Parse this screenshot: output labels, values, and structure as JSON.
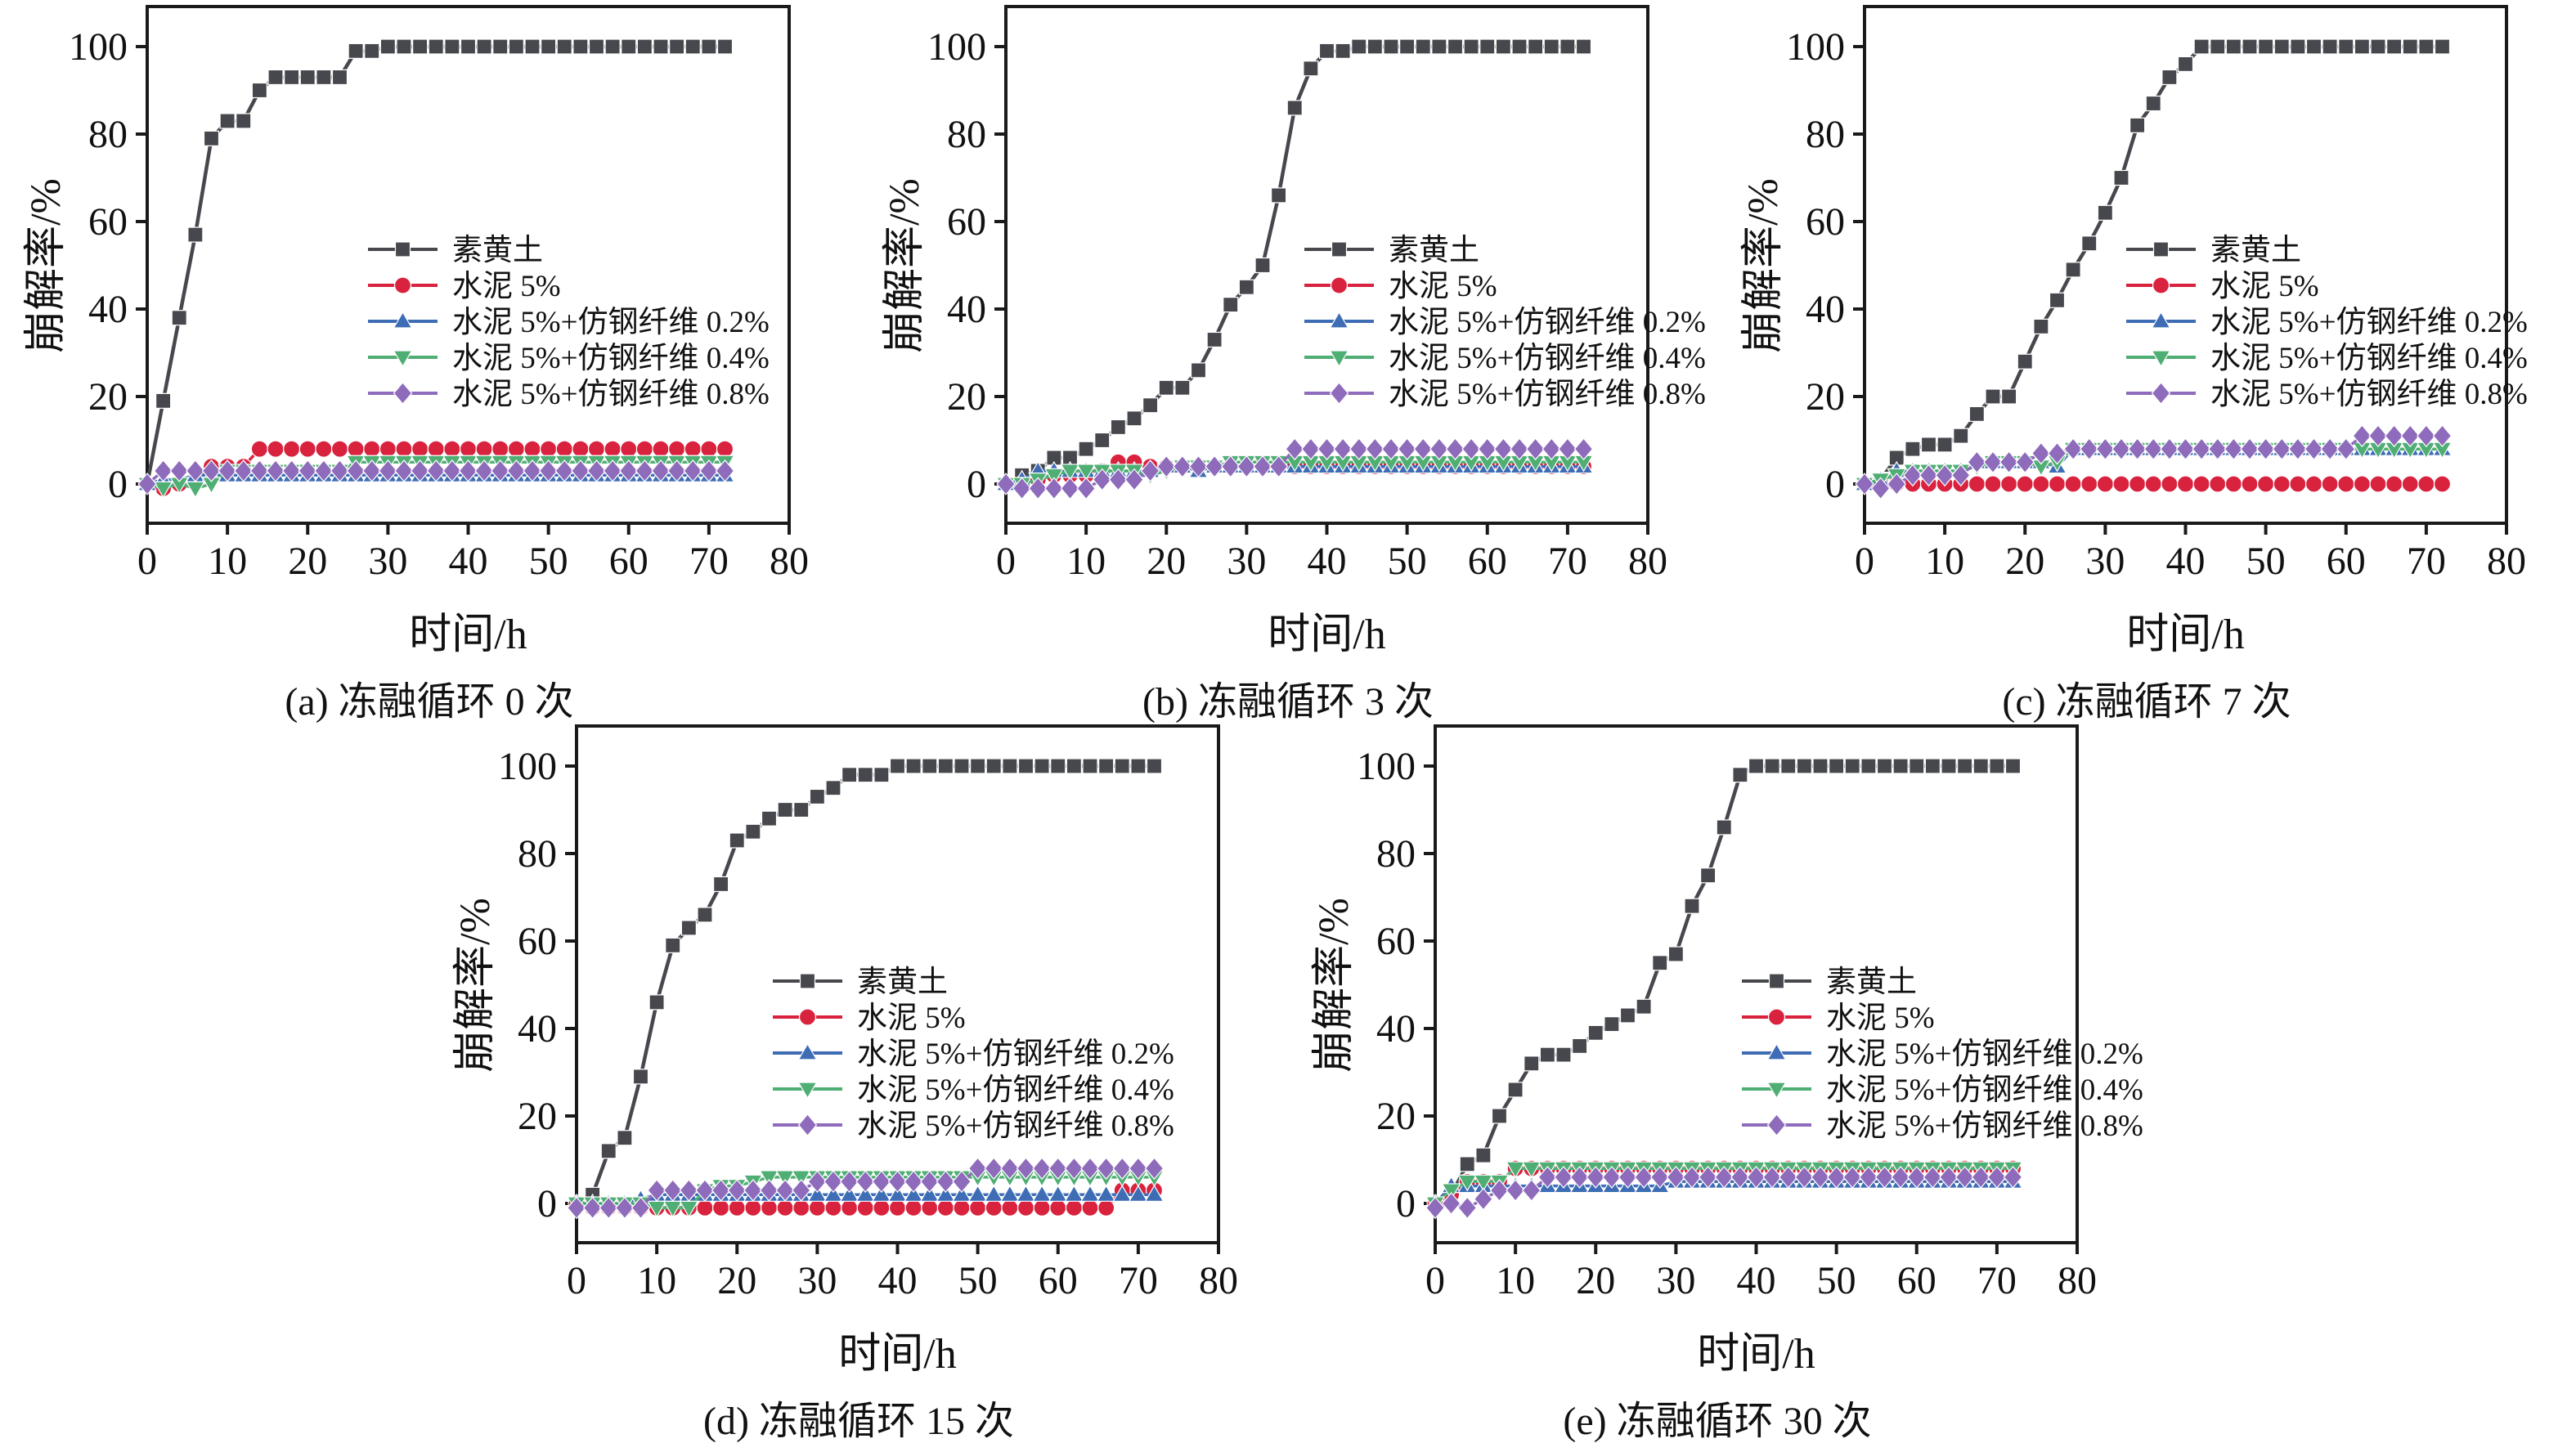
{
  "figure": {
    "description": "五组崩解率-时间曲线（冻融循环次数不同）",
    "axis_color": "#1a1a1a",
    "background": "#ffffff",
    "series_meta": [
      {
        "key": "loess",
        "label": "素黄土",
        "color": "#47484D",
        "marker": "square"
      },
      {
        "key": "cement",
        "label": "水泥 5%",
        "color": "#D9233E",
        "marker": "circle"
      },
      {
        "key": "f02",
        "label": "水泥 5%+仿钢纤维 0.2%",
        "color": "#3E6DB5",
        "marker": "triangle-up"
      },
      {
        "key": "f04",
        "label": "水泥 5%+仿钢纤维 0.4%",
        "color": "#4FAE73",
        "marker": "triangle-down"
      },
      {
        "key": "f08",
        "label": "水泥 5%+仿钢纤维 0.8%",
        "color": "#8E6BBB",
        "marker": "diamond"
      }
    ]
  },
  "chart_data": [
    {
      "id": "a",
      "type": "line",
      "caption": "(a) 冻融循环 0 次",
      "xlabel": "时间/h",
      "ylabel": "崩解率/%",
      "xlim": [
        0,
        80
      ],
      "x_ticks": [
        0,
        10,
        20,
        30,
        40,
        50,
        60,
        70,
        80
      ],
      "y_ticks": [
        0,
        20,
        40,
        60,
        80,
        100
      ],
      "x_start": 0,
      "x_step": 2,
      "x_end": 72,
      "n_points": 37,
      "grid": false,
      "legend_position": "inside-middle",
      "series": [
        {
          "name": "素黄土",
          "values": [
            0,
            19,
            38,
            57,
            79,
            83,
            83,
            90,
            93,
            93,
            93,
            93,
            93,
            99,
            99,
            100
          ]
        },
        {
          "name": "水泥 5%",
          "values": [
            0,
            -1,
            0,
            1,
            4,
            4,
            4,
            8
          ]
        },
        {
          "name": "水泥 5%+仿钢纤维 0.2%",
          "values": [
            0,
            1,
            1,
            2
          ]
        },
        {
          "name": "水泥 5%+仿钢纤维 0.4%",
          "values": [
            0,
            -1,
            0,
            -1,
            0,
            3,
            3,
            3,
            3,
            3,
            3,
            3,
            3,
            5
          ]
        },
        {
          "name": "水泥 5%+仿钢纤维 0.8%",
          "values": [
            0,
            3
          ]
        }
      ]
    },
    {
      "id": "b",
      "type": "line",
      "caption": "(b) 冻融循环 3 次",
      "xlabel": "时间/h",
      "ylabel": "崩解率/%",
      "xlim": [
        0,
        80
      ],
      "x_ticks": [
        0,
        10,
        20,
        30,
        40,
        50,
        60,
        70,
        80
      ],
      "y_ticks": [
        0,
        20,
        40,
        60,
        80,
        100
      ],
      "x_start": 0,
      "x_step": 2,
      "x_end": 72,
      "n_points": 37,
      "grid": false,
      "legend_position": "inside-middle",
      "series": [
        {
          "name": "素黄土",
          "values": [
            0,
            2,
            3,
            6,
            6,
            8,
            10,
            13,
            15,
            18,
            22,
            22,
            26,
            33,
            41,
            45,
            50,
            66,
            86,
            95,
            99,
            99,
            100
          ]
        },
        {
          "name": "水泥 5%",
          "values": [
            0,
            0,
            1,
            2,
            2,
            2,
            3,
            5,
            5,
            4,
            4
          ]
        },
        {
          "name": "水泥 5%+仿钢纤维 0.2%",
          "values": [
            0,
            1,
            3,
            3,
            3,
            3,
            3,
            3,
            3,
            3,
            4,
            4,
            3,
            4
          ]
        },
        {
          "name": "水泥 5%+仿钢纤维 0.4%",
          "values": [
            0,
            0,
            1,
            2,
            3,
            3,
            3,
            3,
            3,
            2,
            3,
            4,
            4,
            4,
            5
          ]
        },
        {
          "name": "水泥 5%+仿钢纤维 0.8%",
          "values": [
            0,
            -1,
            -1,
            -1,
            -1,
            -1,
            1,
            1,
            1,
            3,
            4,
            4,
            4,
            4,
            4,
            4,
            4,
            4,
            8
          ]
        }
      ]
    },
    {
      "id": "c",
      "type": "line",
      "caption": "(c) 冻融循环 7 次",
      "xlabel": "时间/h",
      "ylabel": "崩解率/%",
      "xlim": [
        0,
        80
      ],
      "x_ticks": [
        0,
        10,
        20,
        30,
        40,
        50,
        60,
        70,
        80
      ],
      "y_ticks": [
        0,
        20,
        40,
        60,
        80,
        100
      ],
      "x_start": 0,
      "x_step": 2,
      "x_end": 72,
      "n_points": 37,
      "grid": false,
      "legend_position": "inside-middle",
      "series": [
        {
          "name": "素黄土",
          "values": [
            0,
            1,
            6,
            8,
            9,
            9,
            11,
            16,
            20,
            20,
            28,
            36,
            42,
            49,
            55,
            62,
            70,
            82,
            87,
            93,
            96,
            100
          ]
        },
        {
          "name": "水泥 5%",
          "values": [
            0,
            0,
            0
          ]
        },
        {
          "name": "水泥 5%+仿钢纤维 0.2%",
          "values": [
            0,
            1,
            3,
            3,
            3,
            3,
            3,
            5,
            5,
            5,
            5,
            5,
            4,
            8
          ]
        },
        {
          "name": "水泥 5%+仿钢纤维 0.4%",
          "values": [
            0,
            1,
            2,
            3,
            3,
            3,
            3,
            4,
            5,
            5,
            5,
            4,
            5,
            8
          ]
        },
        {
          "name": "水泥 5%+仿钢纤维 0.8%",
          "values": [
            0,
            -1,
            0,
            2,
            2,
            2,
            2,
            5,
            5,
            5,
            5,
            7,
            7,
            8,
            8,
            8,
            8,
            8,
            8,
            8,
            8,
            8,
            8,
            8,
            8,
            8,
            8,
            8,
            8,
            8,
            8,
            11
          ]
        }
      ]
    },
    {
      "id": "d",
      "type": "line",
      "caption": "(d) 冻融循环 15 次",
      "xlabel": "时间/h",
      "ylabel": "崩解率/%",
      "xlim": [
        0,
        80
      ],
      "x_ticks": [
        0,
        10,
        20,
        30,
        40,
        50,
        60,
        70,
        80
      ],
      "y_ticks": [
        0,
        20,
        40,
        60,
        80,
        100
      ],
      "x_start": 0,
      "x_step": 2,
      "x_end": 72,
      "n_points": 37,
      "grid": false,
      "legend_position": "inside-middle",
      "series": [
        {
          "name": "素黄土",
          "values": [
            0,
            2,
            12,
            15,
            29,
            46,
            59,
            63,
            66,
            73,
            83,
            85,
            88,
            90,
            90,
            93,
            95,
            98,
            98,
            98,
            100
          ]
        },
        {
          "name": "水泥 5%",
          "values": [
            0,
            -1,
            -1,
            -1,
            -1,
            -1,
            -1,
            -1,
            -1,
            -1,
            -1,
            -1,
            -1,
            -1,
            -1,
            -1,
            -1,
            -1,
            -1,
            -1,
            -1,
            -1,
            -1,
            -1,
            -1,
            -1,
            -1,
            -1,
            -1,
            -1,
            -1,
            -1,
            -1,
            -1,
            3
          ]
        },
        {
          "name": "水泥 5%+仿钢纤维 0.2%",
          "values": [
            0,
            0,
            0,
            0,
            1,
            2
          ]
        },
        {
          "name": "水泥 5%+仿钢纤维 0.4%",
          "values": [
            0,
            0,
            0,
            0,
            0,
            -1,
            -1,
            -1,
            3,
            4,
            4,
            5,
            6
          ]
        },
        {
          "name": "水泥 5%+仿钢纤维 0.8%",
          "values": [
            -1,
            -1,
            -1,
            -1,
            -1,
            3,
            3,
            3,
            3,
            3,
            3,
            3,
            3,
            3,
            3,
            5,
            5,
            5,
            5,
            5,
            5,
            5,
            5,
            5,
            5,
            8
          ]
        }
      ]
    },
    {
      "id": "e",
      "type": "line",
      "caption": "(e) 冻融循环 30 次",
      "xlabel": "时间/h",
      "ylabel": "崩解率/%",
      "xlim": [
        0,
        80
      ],
      "x_ticks": [
        0,
        10,
        20,
        30,
        40,
        50,
        60,
        70,
        80
      ],
      "y_ticks": [
        0,
        20,
        40,
        60,
        80,
        100
      ],
      "x_start": 0,
      "x_step": 2,
      "x_end": 72,
      "n_points": 37,
      "grid": false,
      "legend_position": "inside-middle",
      "series": [
        {
          "name": "素黄土",
          "values": [
            0,
            2,
            9,
            11,
            20,
            26,
            32,
            34,
            34,
            36,
            39,
            41,
            43,
            45,
            55,
            57,
            68,
            75,
            86,
            98,
            100
          ]
        },
        {
          "name": "水泥 5%",
          "values": [
            0,
            2,
            5,
            5,
            5,
            8
          ]
        },
        {
          "name": "水泥 5%+仿钢纤维 0.2%",
          "values": [
            0,
            4,
            4,
            4,
            4,
            4,
            4,
            4,
            4,
            4,
            4,
            4,
            4,
            4,
            4,
            5
          ]
        },
        {
          "name": "水泥 5%+仿钢纤维 0.4%",
          "values": [
            0,
            3,
            5,
            5,
            5,
            8
          ]
        },
        {
          "name": "水泥 5%+仿钢纤维 0.8%",
          "values": [
            -1,
            0,
            -1,
            1,
            3,
            3,
            3,
            6
          ]
        }
      ]
    }
  ]
}
